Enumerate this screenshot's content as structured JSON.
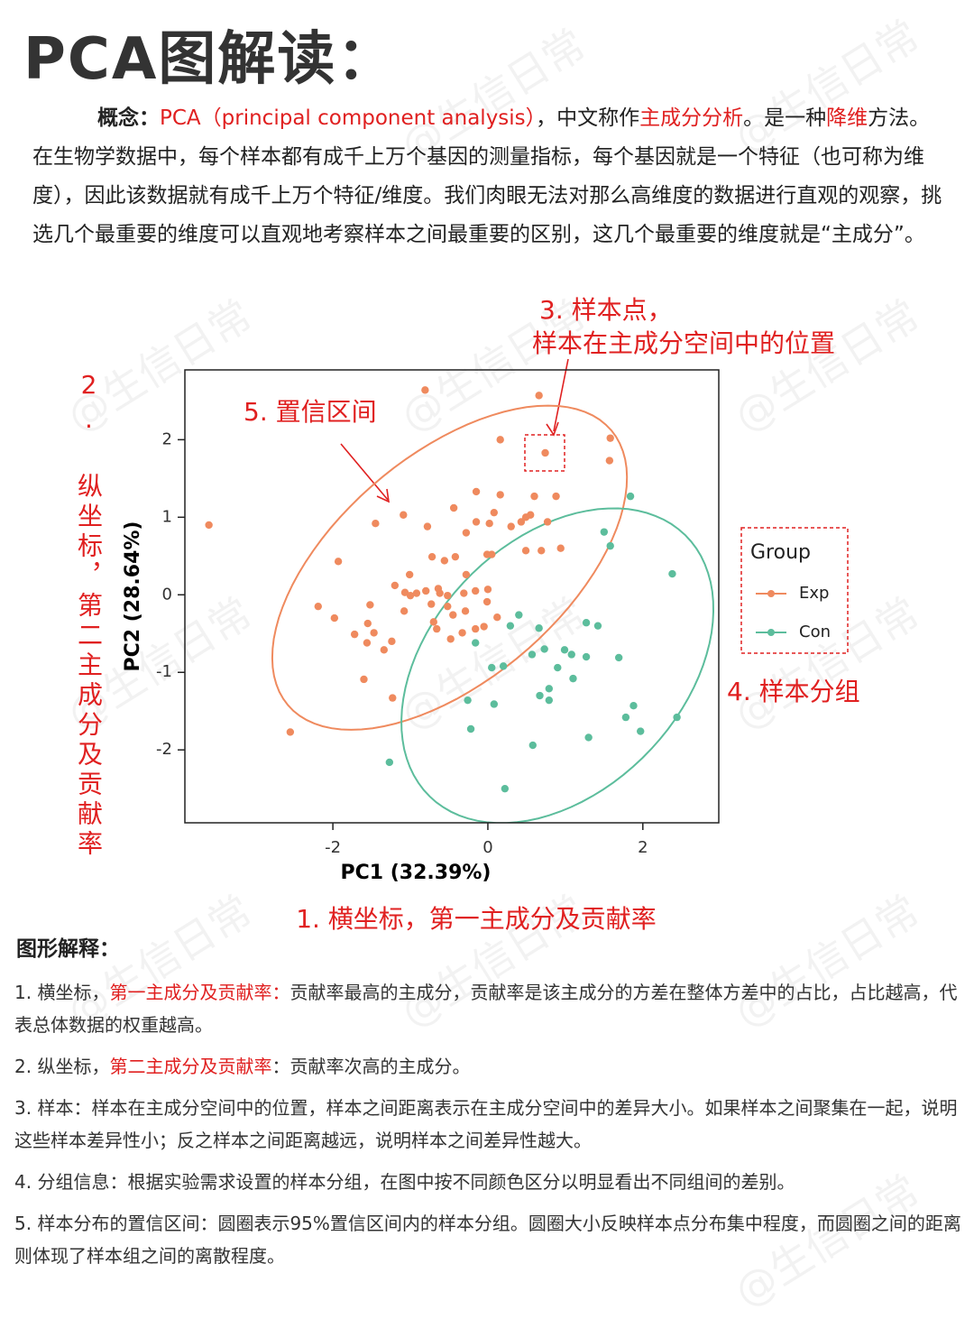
{
  "title": "PCA图解读：",
  "watermark": "@生信日常",
  "concept": {
    "label": "概念：",
    "parts": [
      {
        "text": "PCA（principal component analysis）",
        "color": "#e02020"
      },
      {
        "text": "，中文称作"
      },
      {
        "text": "主成分分析",
        "color": "#e02020"
      },
      {
        "text": "。是一种"
      },
      {
        "text": "降维",
        "color": "#e02020"
      },
      {
        "text": "方法。在生物学数据中，每个样本都有成千上万个基因的测量指标，每个基因就是一个特征（也可称为维度），因此该数据就有成千上万个特征/维度。我们肉眼无法对那么高维度的数据进行直观的观察，挑选几个最重要的维度可以直观地考察样本之间最重要的区别，这几个最重要的维度就是“主成分”。"
      }
    ]
  },
  "chart_data": {
    "type": "scatter",
    "xlabel": "PC1 (32.39%)",
    "ylabel": "PC2 (28.64%)",
    "xlim": [
      -3.91,
      2.98
    ],
    "ylim": [
      -2.94,
      2.9
    ],
    "xticks": [
      -2,
      0,
      2
    ],
    "yticks": [
      -2,
      -1,
      0,
      1,
      2
    ],
    "legend_title": "Group",
    "legend": "right",
    "ellipses": true,
    "series": [
      {
        "name": "Exp",
        "color": "#ef8a5e",
        "x": [
          -3.6,
          -0.81,
          0.66,
          0.16,
          1.58,
          0.74,
          1.57,
          -0.15,
          0.16,
          0.6,
          0.88,
          -0.44,
          0.08,
          0.55,
          0.49,
          0.43,
          0.3,
          0.02,
          -0.15,
          0.77,
          -1.45,
          -1.09,
          -0.78,
          -0.28,
          0.49,
          0.69,
          0.94,
          -0.01,
          0.05,
          -1.93,
          -0.72,
          -0.56,
          -0.42,
          -1.01,
          -0.28,
          -1.2,
          -0.64,
          0.0,
          -1.07,
          -0.92,
          -0.8,
          -0.62,
          -0.52,
          -0.31,
          -0.16,
          -0.52,
          -0.73,
          -1.0,
          -2.19,
          -1.52,
          -0.45,
          -1.08,
          -0.7,
          -0.29,
          -0.01,
          0.12,
          -0.16,
          -0.33,
          -0.05,
          -1.98,
          -1.55,
          -1.72,
          -1.47,
          -0.66,
          -0.48,
          -1.24,
          -1.56,
          -1.34,
          -1.6,
          -1.23,
          -2.55
        ],
        "values": [
          0.9,
          2.64,
          2.57,
          2.0,
          2.02,
          1.83,
          1.73,
          1.33,
          1.29,
          1.27,
          1.27,
          1.12,
          1.06,
          1.03,
          1.0,
          0.94,
          0.88,
          0.92,
          0.94,
          0.94,
          0.92,
          1.03,
          0.88,
          0.8,
          0.57,
          0.57,
          0.6,
          0.52,
          0.52,
          0.43,
          0.49,
          0.44,
          0.49,
          0.26,
          0.26,
          0.12,
          0.08,
          0.07,
          0.03,
          0.02,
          0.05,
          0.02,
          -0.01,
          0.02,
          0.05,
          -0.15,
          -0.12,
          -0.01,
          -0.15,
          -0.13,
          -0.26,
          -0.21,
          -0.35,
          -0.21,
          -0.09,
          -0.29,
          -0.44,
          -0.49,
          -0.41,
          -0.3,
          -0.37,
          -0.51,
          -0.49,
          -0.44,
          -0.57,
          -0.6,
          -0.62,
          -0.71,
          -1.09,
          -1.33,
          -1.77
        ]
      },
      {
        "name": "Con",
        "color": "#5cbd9c",
        "x": [
          1.84,
          1.5,
          1.58,
          2.38,
          0.4,
          0.29,
          1.27,
          1.42,
          0.66,
          -0.16,
          0.05,
          0.2,
          0.73,
          0.57,
          0.99,
          1.08,
          1.27,
          1.69,
          0.9,
          1.1,
          0.79,
          0.67,
          0.79,
          -0.26,
          0.08,
          1.88,
          1.78,
          2.44,
          1.97,
          -0.22,
          1.3,
          0.58,
          -1.27,
          0.22
        ],
        "values": [
          1.27,
          0.81,
          0.63,
          0.27,
          -0.26,
          -0.4,
          -0.36,
          -0.4,
          -0.43,
          -0.62,
          -0.94,
          -0.92,
          -0.7,
          -0.77,
          -0.71,
          -0.77,
          -0.8,
          -0.81,
          -0.94,
          -1.08,
          -1.21,
          -1.3,
          -1.36,
          -1.36,
          -1.41,
          -1.43,
          -1.58,
          -1.58,
          -1.76,
          -1.73,
          -1.84,
          -1.94,
          -2.16,
          -2.5
        ]
      }
    ],
    "annotations": [
      "3. 样本点，",
      "样本在主成分空间中的位置",
      "5. 置信区间",
      "2. 纵坐标，第二主成分及贡献率",
      "4. 样本分组",
      "1. 横坐标，第一主成分及贡献率"
    ]
  },
  "explanation": {
    "title": "图形解释：",
    "items": [
      {
        "parts": [
          {
            "text": "1. 横坐标，"
          },
          {
            "text": "第一主成分及贡献率：",
            "color": "#e02020"
          },
          {
            "text": "贡献率最高的主成分，贡献率是该主成分的方差在整体方差中的占比，占比越高，代表总体数据的权重越高。"
          }
        ]
      },
      {
        "parts": [
          {
            "text": "2. 纵坐标，"
          },
          {
            "text": "第二主成分及贡献率",
            "color": "#e02020"
          },
          {
            "text": "：贡献率次高的主成分。"
          }
        ]
      },
      {
        "parts": [
          {
            "text": "3. 样本：样本在主成分空间中的位置，样本之间距离表示在主成分空间中的差异大小。如果样本之间聚集在一起，说明这些样本差异性小；反之样本之间距离越远，说明样本之间差异性越大。"
          }
        ]
      },
      {
        "parts": [
          {
            "text": "4. 分组信息：根据实验需求设置的样本分组，在图中按不同颜色区分以明显看出不同组间的差别。"
          }
        ]
      },
      {
        "parts": [
          {
            "text": "5. 样本分布的置信区间：圆圈表示95%置信区间内的样本分组。圆圈大小反映样本点分布集中程度，而圆圈之间的距离则体现了样本组之间的离散程度。"
          }
        ]
      }
    ]
  }
}
